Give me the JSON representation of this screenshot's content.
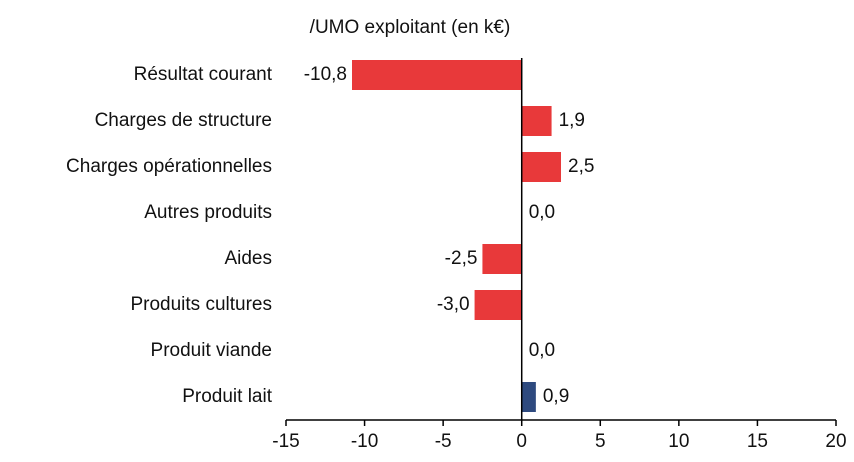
{
  "chart_data": {
    "type": "barh",
    "title": "/UMO exploitant (en k€)",
    "categories": [
      "Résultat courant",
      "Charges de structure",
      "Charges opérationnelles",
      "Autres produits",
      "Aides",
      "Produits cultures",
      "Produit viande",
      "Produit lait"
    ],
    "values": [
      -10.8,
      1.9,
      2.5,
      0.0,
      -2.5,
      -3.0,
      0.0,
      0.9
    ],
    "value_labels": [
      "-10,8",
      "1,9",
      "2,5",
      "0,0",
      "-2,5",
      "-3,0",
      "0,0",
      "0,9"
    ],
    "colors": [
      "#e8393a",
      "#e8393a",
      "#e8393a",
      "#e8393a",
      "#e8393a",
      "#e8393a",
      "#e8393a",
      "#2e4a7f"
    ],
    "xlim": [
      -15,
      20
    ],
    "xticks": [
      -15,
      -10,
      -5,
      0,
      5,
      10,
      15,
      20
    ]
  }
}
